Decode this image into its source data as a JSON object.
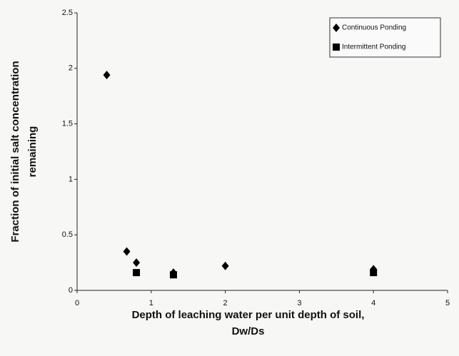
{
  "chart_data": {
    "type": "scatter",
    "xlabel": [
      "Depth of leaching water per unit depth of soil,",
      "Dw/Ds"
    ],
    "ylabel": [
      "Fraction of initial salt concentration",
      "remaining"
    ],
    "xlim": [
      0,
      5
    ],
    "xticks": [
      0,
      1,
      2,
      3,
      4,
      5
    ],
    "ylim": [
      0,
      2.5
    ],
    "yticks": [
      0,
      0.5,
      1,
      1.5,
      2,
      2.5
    ],
    "legend": "upper right",
    "series": [
      {
        "name": "Continuous Ponding",
        "color": "#000000",
        "marker": "diamond",
        "x": [
          0.4,
          0.67,
          0.8,
          1.3,
          2,
          4
        ],
        "values": [
          1.94,
          0.35,
          0.25,
          0.16,
          0.22,
          0.19
        ]
      },
      {
        "name": "Intermittent Ponding",
        "color": "#000000",
        "marker": "square",
        "x": [
          0.8,
          1.3,
          4
        ],
        "values": [
          0.16,
          0.14,
          0.16
        ]
      }
    ]
  }
}
